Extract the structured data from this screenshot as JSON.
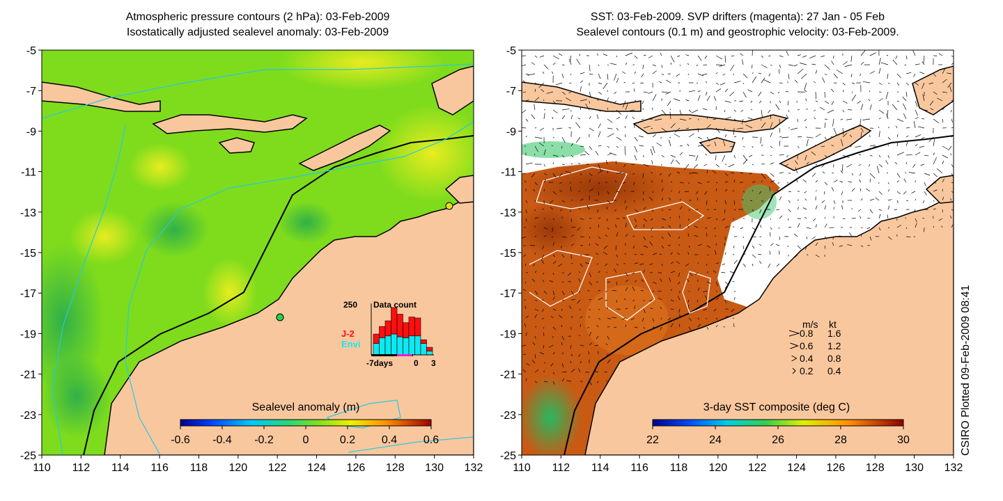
{
  "left_panel": {
    "title_line1": "Atmospheric pressure contours (2 hPa): 03-Feb-2009",
    "title_line2": "Isostatically adjusted sealevel anomaly: 03-Feb-2009",
    "colorbar": {
      "label": "Sealevel anomaly (m)",
      "ticks": [
        "-0.6",
        "-0.4",
        "-0.2",
        "0",
        "0.2",
        "0.4",
        "0.6"
      ],
      "range": [
        -0.6,
        0.6
      ]
    },
    "histogram": {
      "title": "Data count",
      "ymax_label": "250",
      "legend": [
        {
          "label": "J-2",
          "color": "#ff1010"
        },
        {
          "label": "Envi",
          "color": "#10e8f0"
        }
      ],
      "x_labels": [
        "-7days",
        "0",
        "3"
      ],
      "bars": [
        {
          "envi": 60,
          "total": 110
        },
        {
          "envi": 90,
          "total": 150
        },
        {
          "envi": 100,
          "total": 180
        },
        {
          "envi": 110,
          "total": 250
        },
        {
          "envi": 95,
          "total": 215
        },
        {
          "envi": 90,
          "total": 170
        },
        {
          "envi": 100,
          "total": 200
        },
        {
          "envi": 100,
          "total": 195
        },
        {
          "envi": 60,
          "total": 80
        },
        {
          "envi": 20,
          "total": 40
        }
      ],
      "y_max": 250
    }
  },
  "right_panel": {
    "title_line1": "SST: 03-Feb-2009. SVP drifters (magenta): 27 Jan - 05 Feb",
    "title_line2": "Sealevel contours (0.1 m) and geostrophic velocity: 03-Feb-2009.",
    "colorbar": {
      "label": "3-day SST composite (deg C)",
      "ticks": [
        "22",
        "24",
        "26",
        "28",
        "30"
      ],
      "range": [
        22,
        30
      ]
    },
    "velocity_legend": {
      "header_ms": "m/s",
      "header_kt": "kt",
      "rows": [
        {
          "ms": "0.8",
          "kt": "1.6"
        },
        {
          "ms": "0.6",
          "kt": "1.2"
        },
        {
          "ms": "0.4",
          "kt": "0.8"
        },
        {
          "ms": "0.2",
          "kt": "0.4"
        }
      ]
    }
  },
  "axes": {
    "lon_ticks": [
      "110",
      "112",
      "114",
      "116",
      "118",
      "120",
      "122",
      "124",
      "126",
      "128",
      "130",
      "132"
    ],
    "lat_ticks": [
      "-5",
      "-7",
      "-9",
      "-11",
      "-13",
      "-15",
      "-17",
      "-19",
      "-21",
      "-23",
      "-25"
    ],
    "lon_range": [
      110,
      132
    ],
    "lat_range": [
      -25,
      -5
    ]
  },
  "credit": "CSIRO Plotted 09-Feb-2009 08:41",
  "colors": {
    "land": "#f9c79e",
    "ocean_left": "#7edc1c",
    "ocean_right": "#c85a14",
    "contour": "#28c8e0"
  }
}
